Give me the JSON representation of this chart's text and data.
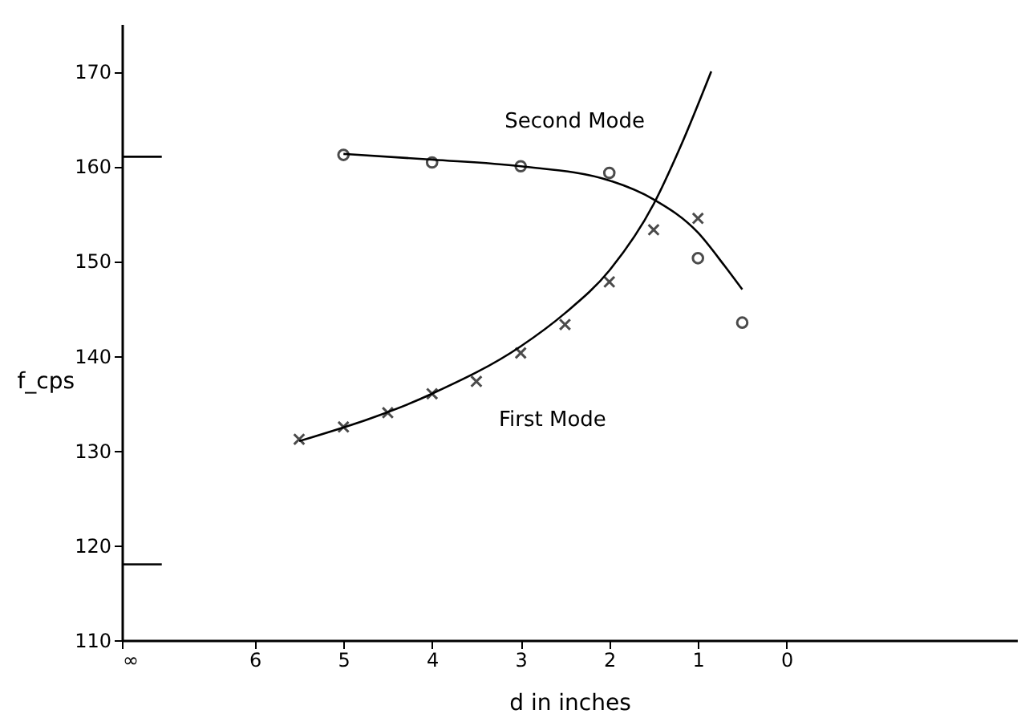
{
  "chart_data": {
    "type": "scatter",
    "xlabel": "d in inches",
    "ylabel": "f_cps",
    "xlim": [
      7.5,
      -2.6
    ],
    "xticks": [
      {
        "value": 7.5,
        "label": "∞"
      },
      6,
      5,
      4,
      3,
      2,
      1,
      0
    ],
    "ylim": [
      110,
      175
    ],
    "yticks": [
      110,
      120,
      130,
      140,
      150,
      160,
      170
    ],
    "grid": false,
    "series": [
      {
        "marker": "circle",
        "color": "#000000",
        "x": [
          5,
          4,
          3,
          2,
          1,
          0.5
        ],
        "values": [
          161.2,
          160.4,
          160,
          159.3,
          150.3,
          143.5
        ]
      },
      {
        "marker": "cross",
        "color": "#000000",
        "x": [
          5.5,
          5,
          4.5,
          4,
          3.5,
          3,
          2.5,
          2,
          1.5,
          1
        ],
        "values": [
          131.2,
          132.5,
          134,
          136,
          137.3,
          140.3,
          143.3,
          147.8,
          153.3,
          154.5
        ]
      },
      {
        "type": "line",
        "color": "#000000",
        "x": [
          5,
          4,
          3,
          2,
          1.5,
          1,
          0.7,
          0.5
        ],
        "values": [
          161.3,
          160.7,
          160,
          158.5,
          156.5,
          153,
          149.5,
          147
        ]
      },
      {
        "type": "line",
        "color": "#000000",
        "x": [
          5.5,
          4,
          3,
          2.5,
          2,
          1.5,
          1.2,
          0.85
        ],
        "values": [
          131,
          136,
          141,
          144.5,
          149,
          156,
          162,
          170
        ]
      },
      {
        "type": "line",
        "color": "#000000",
        "x": [
          7.5,
          7.05
        ],
        "values": [
          161,
          161
        ]
      },
      {
        "type": "line",
        "color": "#000000",
        "x": [
          7.5,
          7.05
        ],
        "values": [
          118,
          118
        ]
      }
    ],
    "annotations": [
      {
        "text": "Second Mode",
        "x": 3,
        "y": 160
      },
      {
        "text": "First Mode",
        "x": 3.5,
        "y": 137.3
      }
    ]
  }
}
